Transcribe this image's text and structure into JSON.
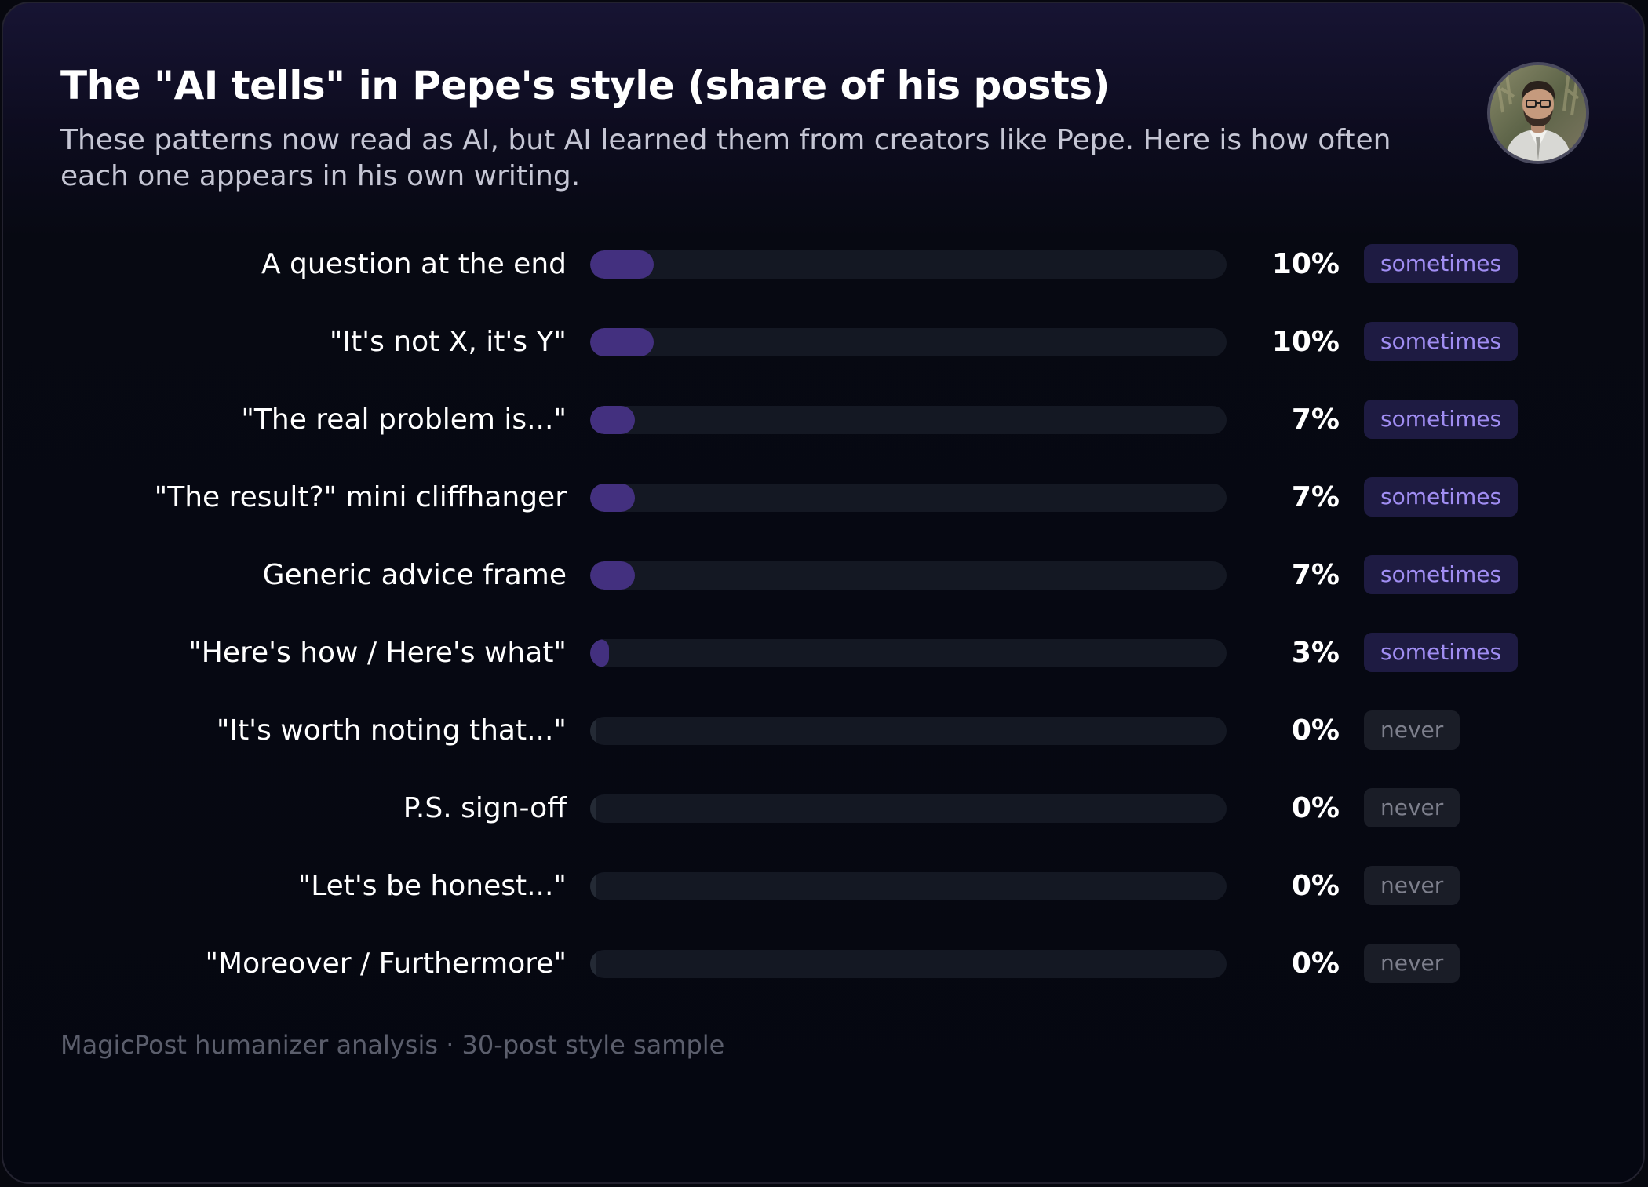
{
  "header": {
    "title": "The \"AI tells\" in Pepe's style (share of his posts)",
    "subtitle": "These patterns now read as AI, but AI learned them from creators like Pepe. Here is how often each one appears in his own writing."
  },
  "footer": {
    "text": "MagicPost humanizer analysis · 30-post style sample"
  },
  "colors": {
    "bar_fill": "#43307f",
    "bar_track": "#141823",
    "badge_sometimes_text": "#a08df2",
    "badge_never_text": "#7d7f8c"
  },
  "chart_data": {
    "type": "bar",
    "orientation": "horizontal",
    "title": "The \"AI tells\" in Pepe's style (share of his posts)",
    "xlim": [
      0,
      100
    ],
    "categories": [
      "A question at the end",
      "\"It's not X, it's Y\"",
      "\"The real problem is...\"",
      "\"The result?\" mini cliffhanger",
      "Generic advice frame",
      "\"Here's how / Here's what\"",
      "\"It's worth noting that...\"",
      "P.S. sign-off",
      "\"Let's be honest...\"",
      "\"Moreover / Furthermore\""
    ],
    "values": [
      10,
      10,
      7,
      7,
      7,
      3,
      0,
      0,
      0,
      0
    ],
    "value_labels": [
      "10%",
      "10%",
      "7%",
      "7%",
      "7%",
      "3%",
      "0%",
      "0%",
      "0%",
      "0%"
    ],
    "frequency_labels": [
      "sometimes",
      "sometimes",
      "sometimes",
      "sometimes",
      "sometimes",
      "sometimes",
      "never",
      "never",
      "never",
      "never"
    ]
  }
}
